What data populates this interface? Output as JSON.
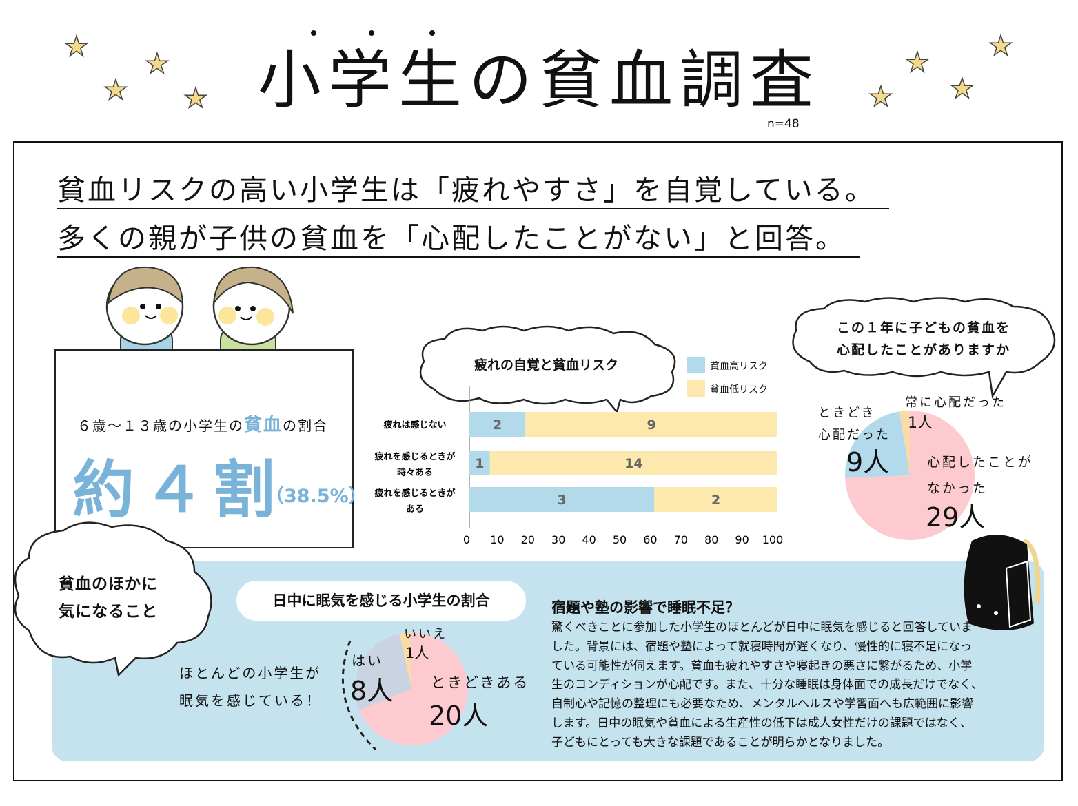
{
  "title": "小学生の貧血調査",
  "sample": "n=48",
  "headlines": [
    "貧血リスクの高い小学生は「疲れやすさ」を自覚している。",
    "多くの親が子供の貧血を「心配したことがない」と回答。"
  ],
  "stat": {
    "label_pre": "６歳～１３歳の小学生の",
    "label_hl": "貧血",
    "label_post": "の割合",
    "big": "約４割",
    "pct": "（38.5%）"
  },
  "colors": {
    "blue": "#b3daea",
    "yellow": "#fde8ad",
    "pink": "#fdcbcf",
    "grey": "#c9d3e1",
    "accent": "#7ab3da",
    "panel": "#c5e2ef"
  },
  "chart_data": [
    {
      "type": "bar",
      "orientation": "horizontal",
      "stacked": "percent",
      "title": "疲れの自覚と貧血リスク",
      "categories": [
        "疲れは感じない",
        "疲れを感じるときが時々ある",
        "疲れを感じるときがある"
      ],
      "category_lines": [
        [
          "疲れは感じない"
        ],
        [
          "疲れを感じるときが",
          "時々ある"
        ],
        [
          "疲れを感じるときが",
          "ある"
        ]
      ],
      "series": [
        {
          "name": "貧血高リスク",
          "values": [
            2,
            1,
            3
          ],
          "color": "#b3daea"
        },
        {
          "name": "貧血低リスク",
          "values": [
            9,
            14,
            2
          ],
          "color": "#fde8ad"
        }
      ],
      "unit": "人",
      "xlim": [
        0,
        100
      ],
      "xticks": [
        "0",
        "10",
        "20",
        "30",
        "40",
        "50",
        "60",
        "70",
        "80",
        "90",
        "100"
      ],
      "legend": "top-right"
    },
    {
      "type": "pie",
      "title_lines": [
        "この１年に子どもの貧血を",
        "心配したことがありますか"
      ],
      "slices": [
        {
          "label": "心配したことがなかった",
          "value": 29,
          "color": "#fdcbcf"
        },
        {
          "label": "ときどき心配だった",
          "value": 9,
          "color": "#b3daea"
        },
        {
          "label": "常に心配だった",
          "value": 1,
          "color": "#f8dca8"
        }
      ],
      "label_lines": [
        [
          "心配したことが",
          "なかった"
        ],
        [
          "ときどき",
          "心配だった"
        ],
        [
          "常に心配だった"
        ]
      ],
      "unit": "人"
    },
    {
      "type": "pie",
      "title": "日中に眠気を感じる小学生の割合",
      "slices": [
        {
          "label": "ときどきある",
          "value": 20,
          "color": "#fdcbcf"
        },
        {
          "label": "はい",
          "value": 8,
          "color": "#c9d3e1"
        },
        {
          "label": "いいえ",
          "value": 1,
          "color": "#f8dca8"
        }
      ],
      "unit": "人"
    }
  ],
  "cloud_side": [
    "貧血のほかに",
    "気になること"
  ],
  "sleep_note": [
    "ほとんどの小学生が",
    "眠気を感じている！"
  ],
  "paragraph": {
    "heading": "宿題や塾の影響で睡眠不足？",
    "lines": [
      "驚くべきことに参加した小学生のほとんどが日中に眠気を感じると回答していま",
      "した。背景には、宿題や塾によって就寝時間が遅くなり、慢性的に寝不足になっ",
      "ている可能性が伺えます。貧血も疲れやすさや寝起きの悪さに繋がるため、小学",
      "生のコンディションが心配です。また、十分な睡眠は身体面での成長だけでなく、",
      "自制心や記憶の整理にも必要なため、メンタルヘルスや学習面へも広範囲に影響",
      "します。日中の眠気や貧血による生産性の低下は成人女性だけの課題ではなく、",
      "子どもにとっても大きな課題であることが明らかとなりました。"
    ]
  }
}
